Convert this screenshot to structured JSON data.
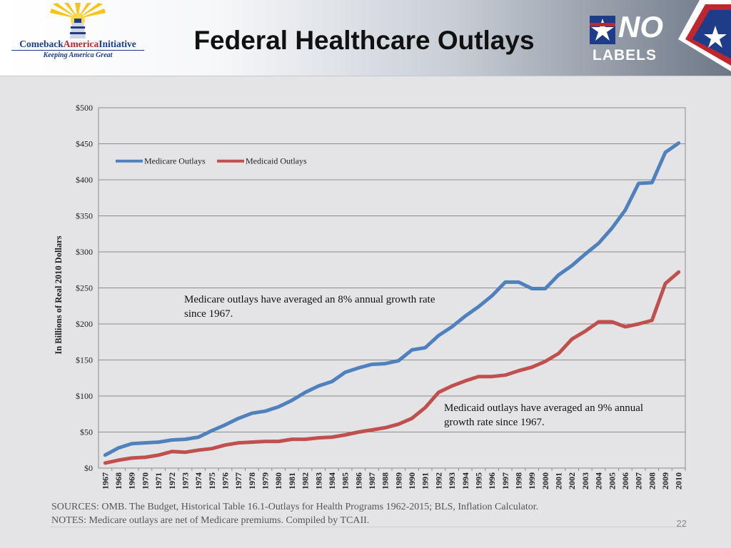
{
  "header": {
    "title": "Federal Healthcare Outlays",
    "left_logo": {
      "name_part1": "Comeback",
      "name_part2": "America",
      "name_part3": "Initiative",
      "tagline": "Keeping America Great"
    },
    "right_logo": {
      "line1": "NO",
      "line2": "LABELS"
    }
  },
  "colors": {
    "medicare": "#4f81bd",
    "medicaid": "#c0504d",
    "background": "#e4e4e6",
    "grid": "#8c8c8c"
  },
  "chart_data": {
    "type": "line",
    "title": "",
    "xlabel": "",
    "ylabel": "In Billions of Real 2010 Dollars",
    "ylim": [
      0,
      500
    ],
    "yticks": [
      0,
      50,
      100,
      150,
      200,
      250,
      300,
      350,
      400,
      450,
      500
    ],
    "ytick_labels": [
      "$0",
      "$50",
      "$100",
      "$150",
      "$200",
      "$250",
      "$300",
      "$350",
      "$400",
      "$450",
      "$500"
    ],
    "grid": true,
    "legend_position": "top-left",
    "categories": [
      "1967",
      "1968",
      "1969",
      "1970",
      "1971",
      "1972",
      "1973",
      "1974",
      "1975",
      "1976",
      "1977",
      "1978",
      "1979",
      "1980",
      "1981",
      "1982",
      "1983",
      "1984",
      "1985",
      "1986",
      "1987",
      "1988",
      "1989",
      "1990",
      "1991",
      "1992",
      "1993",
      "1994",
      "1995",
      "1996",
      "1997",
      "1998",
      "1999",
      "2000",
      "2001",
      "2002",
      "2003",
      "2004",
      "2005",
      "2006",
      "2007",
      "2008",
      "2009",
      "2010"
    ],
    "series": [
      {
        "name": "Medicare Outlays",
        "color": "#4f81bd",
        "values": [
          18,
          28,
          34,
          35,
          36,
          39,
          40,
          43,
          52,
          60,
          69,
          76,
          79,
          85,
          94,
          105,
          114,
          120,
          133,
          139,
          144,
          145,
          149,
          164,
          167,
          184,
          196,
          211,
          224,
          239,
          258,
          258,
          249,
          249,
          268,
          281,
          297,
          312,
          333,
          358,
          395,
          396,
          438,
          451
        ]
      },
      {
        "name": "Medicaid Outlays",
        "color": "#c0504d",
        "values": [
          7,
          11,
          14,
          15,
          18,
          23,
          22,
          25,
          27,
          32,
          35,
          36,
          37,
          37,
          40,
          40,
          42,
          43,
          46,
          50,
          53,
          56,
          61,
          69,
          84,
          105,
          114,
          121,
          127,
          127,
          129,
          135,
          140,
          148,
          159,
          179,
          190,
          203,
          203,
          196,
          200,
          205,
          256,
          272
        ]
      }
    ],
    "annotations": [
      {
        "lines": [
          "Medicare outlays have averaged an 8% annual growth rate",
          "since 1967."
        ]
      },
      {
        "lines": [
          "Medicaid outlays have averaged an 9% annual",
          "growth rate since 1967."
        ]
      }
    ]
  },
  "footer": {
    "sources": "SOURCES:  OMB. The Budget, Historical  Table 16.1-Outlays for Health Programs 1962-2015;  BLS, Inflation Calculator.",
    "notes": "NOTES: Medicare outlays are net of Medicare premiums. Compiled by TCAII.",
    "slide_number": "22"
  }
}
